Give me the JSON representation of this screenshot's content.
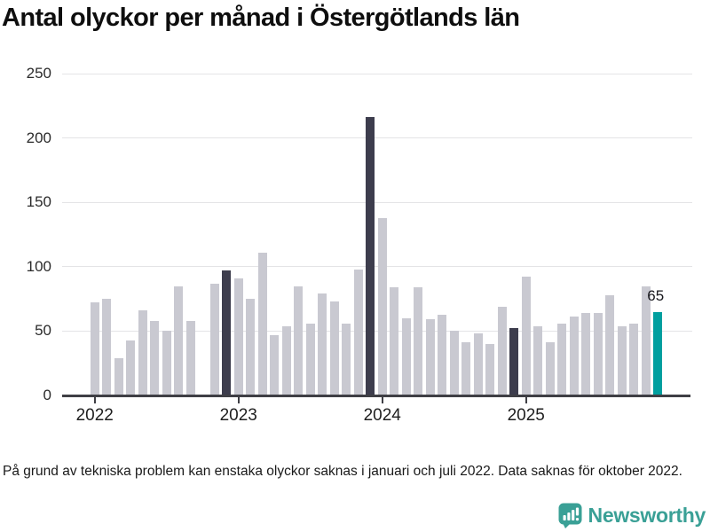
{
  "title": "Antal olyckor per månad i Östergötlands län",
  "footnote": "På grund av tekniska problem kan enstaka olyckor saknas i januari och juli 2022. Data saknas för oktober 2022.",
  "branding": {
    "name": "Newsworthy",
    "logo_icon": "bar-chart-speech-bubble-icon",
    "logo_color": "#3aa096"
  },
  "colors": {
    "bar_default": "#c9c9d1",
    "bar_highlight_dark": "#3d3d4d",
    "bar_highlight_teal": "#009f9f",
    "gridline": "#e4e4e6",
    "axis": "#3f3f45",
    "title_text": "#0e0e0e"
  },
  "chart_data": {
    "type": "bar",
    "title": "Antal olyckor per månad i Östergötlands län",
    "xlabel": "",
    "ylabel": "",
    "ylim": [
      0,
      250
    ],
    "yticks": [
      0,
      50,
      100,
      150,
      200,
      250
    ],
    "grid": "horizontal",
    "x_tick_labels": [
      "2022",
      "2023",
      "2024",
      "2025"
    ],
    "annotation": {
      "text": "65",
      "target_month": "2025-12"
    },
    "missing_months": [
      "2022-10"
    ],
    "highlight_dark_months": [
      "2022-12",
      "2023-12",
      "2024-12"
    ],
    "highlight_teal_month": "2025-12",
    "series": [
      {
        "name": "Antal olyckor",
        "months": [
          "2022-01",
          "2022-02",
          "2022-03",
          "2022-04",
          "2022-05",
          "2022-06",
          "2022-07",
          "2022-08",
          "2022-09",
          "2022-10",
          "2022-11",
          "2022-12",
          "2023-01",
          "2023-02",
          "2023-03",
          "2023-04",
          "2023-05",
          "2023-06",
          "2023-07",
          "2023-08",
          "2023-09",
          "2023-10",
          "2023-11",
          "2023-12",
          "2024-01",
          "2024-02",
          "2024-03",
          "2024-04",
          "2024-05",
          "2024-06",
          "2024-07",
          "2024-08",
          "2024-09",
          "2024-10",
          "2024-11",
          "2024-12",
          "2025-01",
          "2025-02",
          "2025-03",
          "2025-04",
          "2025-05",
          "2025-06",
          "2025-07",
          "2025-08",
          "2025-09",
          "2025-10",
          "2025-11",
          "2025-12"
        ],
        "values": [
          72,
          75,
          29,
          43,
          66,
          58,
          50,
          85,
          58,
          null,
          87,
          97,
          91,
          75,
          111,
          47,
          54,
          85,
          56,
          79,
          73,
          56,
          98,
          216,
          138,
          84,
          60,
          84,
          59,
          63,
          50,
          41,
          48,
          40,
          69,
          52,
          92,
          54,
          41,
          56,
          61,
          64,
          64,
          78,
          54,
          56,
          85,
          65
        ]
      }
    ]
  }
}
